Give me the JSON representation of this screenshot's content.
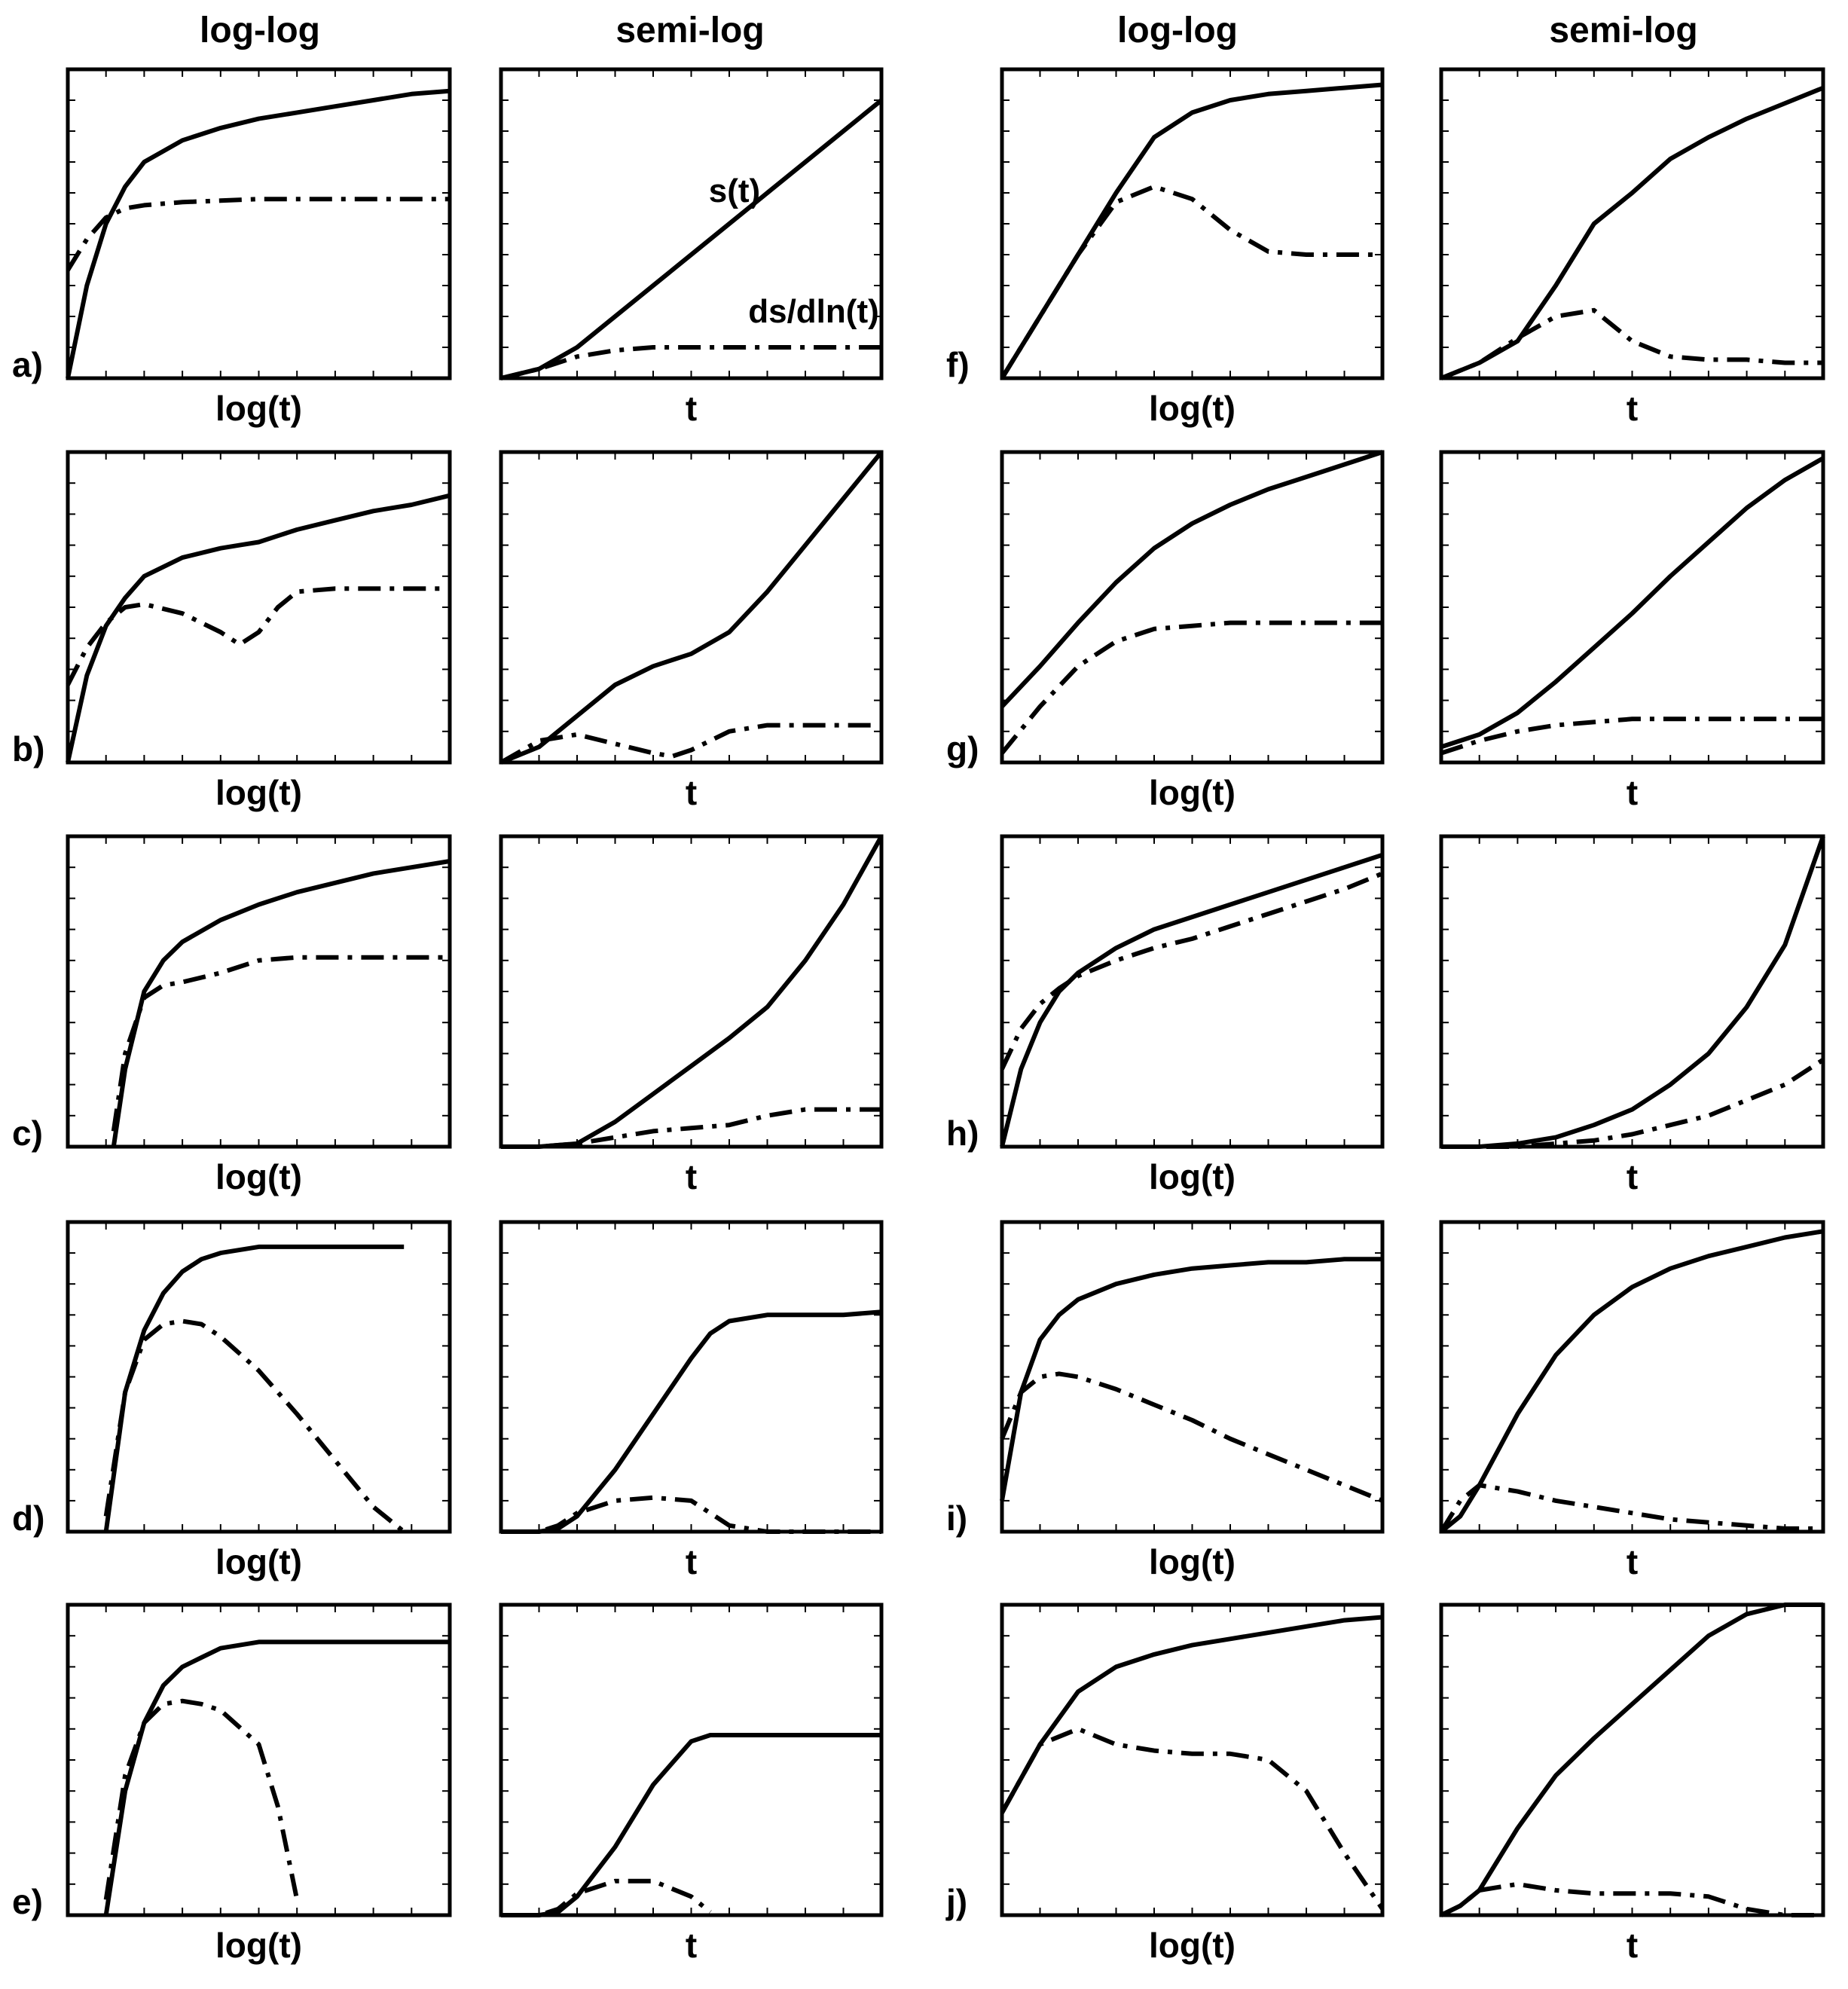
{
  "headers": {
    "loglog_left": "log-log",
    "semilog_left": "semi-log",
    "loglog_right": "log-log",
    "semilog_right": "semi-log"
  },
  "annotations": {
    "solid_curve": "s(t)",
    "dashdot_curve": "ds/dln(t)"
  },
  "style": {
    "line_color": "#000000",
    "frame_color": "#000000",
    "background": "#ffffff"
  },
  "chart_data": [
    {
      "id": "a",
      "label": "a)",
      "scale": "log-log",
      "type": "line",
      "xlabel": "log(t)",
      "x": [
        0,
        0.05,
        0.1,
        0.15,
        0.2,
        0.3,
        0.4,
        0.5,
        0.6,
        0.7,
        0.8,
        0.9,
        1
      ],
      "series": [
        {
          "name": "s(t)",
          "style": "solid",
          "values": [
            0,
            0.3,
            0.5,
            0.62,
            0.7,
            0.77,
            0.81,
            0.84,
            0.86,
            0.88,
            0.9,
            0.92,
            0.93
          ]
        },
        {
          "name": "ds/dln(t)",
          "style": "dashdot",
          "values": [
            0.35,
            0.45,
            0.52,
            0.55,
            0.56,
            0.57,
            0.575,
            0.58,
            0.58,
            0.58,
            0.58,
            0.58,
            0.58
          ]
        }
      ]
    },
    {
      "id": "a2",
      "label": "",
      "scale": "semi-log",
      "type": "line",
      "xlabel": "t",
      "x": [
        0,
        0.1,
        0.2,
        0.3,
        0.4,
        0.5,
        0.6,
        0.7,
        0.8,
        0.9,
        1
      ],
      "series": [
        {
          "name": "s(t)",
          "style": "solid",
          "values": [
            0,
            0.03,
            0.1,
            0.2,
            0.3,
            0.4,
            0.5,
            0.6,
            0.7,
            0.8,
            0.9
          ]
        },
        {
          "name": "ds/dln(t)",
          "style": "dashdot",
          "values": [
            0,
            0.03,
            0.07,
            0.09,
            0.1,
            0.1,
            0.1,
            0.1,
            0.1,
            0.1,
            0.1
          ]
        }
      ]
    },
    {
      "id": "b",
      "label": "b)",
      "scale": "log-log",
      "type": "line",
      "xlabel": "log(t)",
      "x": [
        0,
        0.05,
        0.1,
        0.15,
        0.2,
        0.3,
        0.4,
        0.45,
        0.5,
        0.55,
        0.6,
        0.7,
        0.8,
        0.9,
        1
      ],
      "series": [
        {
          "name": "s(t)",
          "style": "solid",
          "values": [
            0,
            0.28,
            0.44,
            0.53,
            0.6,
            0.66,
            0.69,
            0.7,
            0.71,
            0.73,
            0.75,
            0.78,
            0.81,
            0.83,
            0.86
          ]
        },
        {
          "name": "ds/dln(t)",
          "style": "dashdot",
          "values": [
            0.25,
            0.37,
            0.45,
            0.5,
            0.51,
            0.48,
            0.42,
            0.38,
            0.42,
            0.5,
            0.55,
            0.56,
            0.56,
            0.56,
            0.56
          ]
        }
      ]
    },
    {
      "id": "b2",
      "label": "",
      "scale": "semi-log",
      "type": "line",
      "xlabel": "t",
      "x": [
        0,
        0.1,
        0.2,
        0.3,
        0.4,
        0.45,
        0.5,
        0.6,
        0.7,
        0.8,
        0.9,
        1
      ],
      "series": [
        {
          "name": "s(t)",
          "style": "solid",
          "values": [
            0,
            0.05,
            0.15,
            0.25,
            0.31,
            0.33,
            0.35,
            0.42,
            0.55,
            0.7,
            0.85,
            1
          ]
        },
        {
          "name": "ds/dln(t)",
          "style": "dashdot",
          "values": [
            0,
            0.07,
            0.09,
            0.06,
            0.03,
            0.02,
            0.04,
            0.1,
            0.12,
            0.12,
            0.12,
            0.12
          ]
        }
      ]
    },
    {
      "id": "c",
      "label": "c)",
      "scale": "log-log",
      "type": "line",
      "xlabel": "log(t)",
      "x": [
        0.12,
        0.15,
        0.2,
        0.25,
        0.3,
        0.4,
        0.5,
        0.6,
        0.7,
        0.8,
        0.9,
        1
      ],
      "series": [
        {
          "name": "s(t)",
          "style": "solid",
          "values": [
            0,
            0.25,
            0.5,
            0.6,
            0.66,
            0.73,
            0.78,
            0.82,
            0.85,
            0.88,
            0.9,
            0.92
          ]
        },
        {
          "name": "ds/dln(t)",
          "style": "dashdot",
          "values": [
            0.05,
            0.3,
            0.48,
            0.52,
            0.53,
            0.56,
            0.6,
            0.61,
            0.61,
            0.61,
            0.61,
            0.61
          ]
        }
      ]
    },
    {
      "id": "c2",
      "label": "",
      "scale": "semi-log",
      "type": "line",
      "xlabel": "t",
      "x": [
        0,
        0.1,
        0.2,
        0.3,
        0.4,
        0.5,
        0.6,
        0.7,
        0.8,
        0.9,
        1
      ],
      "series": [
        {
          "name": "s(t)",
          "style": "solid",
          "values": [
            0,
            0,
            0.01,
            0.08,
            0.17,
            0.26,
            0.35,
            0.45,
            0.6,
            0.78,
            1
          ]
        },
        {
          "name": "ds/dln(t)",
          "style": "dashdot",
          "values": [
            0,
            0,
            0.01,
            0.03,
            0.05,
            0.06,
            0.07,
            0.1,
            0.12,
            0.12,
            0.12
          ]
        }
      ]
    },
    {
      "id": "d",
      "label": "d)",
      "scale": "log-log",
      "type": "line",
      "xlabel": "log(t)",
      "x": [
        0.1,
        0.15,
        0.2,
        0.25,
        0.3,
        0.35,
        0.4,
        0.5,
        0.6,
        0.7,
        0.8,
        0.88
      ],
      "series": [
        {
          "name": "s(t)",
          "style": "solid",
          "values": [
            0,
            0.45,
            0.65,
            0.77,
            0.84,
            0.88,
            0.9,
            0.92,
            0.92,
            0.92,
            0.92,
            0.92
          ]
        },
        {
          "name": "ds/dln(t)",
          "style": "dashdot",
          "values": [
            0.05,
            0.45,
            0.62,
            0.67,
            0.68,
            0.67,
            0.63,
            0.52,
            0.38,
            0.23,
            0.08,
            0
          ]
        }
      ]
    },
    {
      "id": "d2",
      "label": "",
      "scale": "semi-log",
      "type": "line",
      "xlabel": "t",
      "x": [
        0,
        0.1,
        0.15,
        0.2,
        0.3,
        0.4,
        0.5,
        0.55,
        0.6,
        0.7,
        0.8,
        0.9,
        1
      ],
      "series": [
        {
          "name": "s(t)",
          "style": "solid",
          "values": [
            0,
            0,
            0.01,
            0.05,
            0.2,
            0.38,
            0.56,
            0.64,
            0.68,
            0.7,
            0.7,
            0.7,
            0.71
          ]
        },
        {
          "name": "ds/dln(t)",
          "style": "dashdot",
          "values": [
            0,
            0,
            0.02,
            0.06,
            0.1,
            0.11,
            0.1,
            0.06,
            0.02,
            0,
            0,
            0,
            0
          ]
        }
      ]
    },
    {
      "id": "e",
      "label": "e)",
      "scale": "log-log",
      "type": "line",
      "xlabel": "log(t)",
      "x": [
        0.1,
        0.15,
        0.2,
        0.25,
        0.3,
        0.35,
        0.4,
        0.5,
        0.55,
        0.6,
        0.7,
        0.8,
        0.9,
        1
      ],
      "series": [
        {
          "name": "s(t)",
          "style": "solid",
          "values": [
            0,
            0.4,
            0.62,
            0.74,
            0.8,
            0.83,
            0.86,
            0.88,
            0.88,
            0.88,
            0.88,
            0.88,
            0.88,
            0.88
          ]
        },
        {
          "name": "ds/dln(t)",
          "style": "dashdot",
          "values": [
            0.05,
            0.45,
            0.62,
            0.68,
            0.69,
            0.68,
            0.66,
            0.55,
            0.35,
            0.05,
            null,
            null,
            null,
            null
          ]
        }
      ]
    },
    {
      "id": "e2",
      "label": "",
      "scale": "semi-log",
      "type": "line",
      "xlabel": "t",
      "x": [
        0,
        0.1,
        0.15,
        0.2,
        0.3,
        0.4,
        0.5,
        0.55,
        0.6,
        0.7,
        0.8,
        0.9,
        1
      ],
      "series": [
        {
          "name": "s(t)",
          "style": "solid",
          "values": [
            0,
            0,
            0.01,
            0.06,
            0.22,
            0.42,
            0.56,
            0.58,
            0.58,
            0.58,
            0.58,
            0.58,
            0.58
          ]
        },
        {
          "name": "ds/dln(t)",
          "style": "dashdot",
          "values": [
            0,
            0,
            0.02,
            0.07,
            0.11,
            0.11,
            0.06,
            0.01,
            null,
            null,
            null,
            null,
            null
          ]
        }
      ]
    },
    {
      "id": "f",
      "label": "f)",
      "scale": "log-log",
      "type": "line",
      "xlabel": "log(t)",
      "x": [
        0,
        0.1,
        0.2,
        0.3,
        0.4,
        0.5,
        0.6,
        0.7,
        0.8,
        0.9,
        1
      ],
      "series": [
        {
          "name": "s(t)",
          "style": "solid",
          "values": [
            0,
            0.2,
            0.4,
            0.6,
            0.78,
            0.86,
            0.9,
            0.92,
            0.93,
            0.94,
            0.95
          ]
        },
        {
          "name": "ds/dln(t)",
          "style": "dashdot",
          "values": [
            0,
            0.2,
            0.4,
            0.57,
            0.62,
            0.58,
            0.48,
            0.41,
            0.4,
            0.4,
            0.4
          ]
        }
      ]
    },
    {
      "id": "f2",
      "label": "",
      "scale": "semi-log",
      "type": "line",
      "xlabel": "t",
      "x": [
        0,
        0.1,
        0.2,
        0.3,
        0.4,
        0.5,
        0.6,
        0.7,
        0.8,
        0.9,
        1
      ],
      "series": [
        {
          "name": "s(t)",
          "style": "solid",
          "values": [
            0,
            0.05,
            0.12,
            0.3,
            0.5,
            0.6,
            0.71,
            0.78,
            0.84,
            0.89,
            0.94
          ]
        },
        {
          "name": "ds/dln(t)",
          "style": "dashdot",
          "values": [
            0,
            0.05,
            0.13,
            0.2,
            0.22,
            0.12,
            0.07,
            0.06,
            0.06,
            0.05,
            0.05
          ]
        }
      ]
    },
    {
      "id": "g",
      "label": "g)",
      "scale": "log-log",
      "type": "line",
      "xlabel": "log(t)",
      "x": [
        0,
        0.1,
        0.2,
        0.3,
        0.4,
        0.5,
        0.6,
        0.7,
        0.8,
        0.9,
        1
      ],
      "series": [
        {
          "name": "s(t)",
          "style": "solid",
          "values": [
            0.18,
            0.31,
            0.45,
            0.58,
            0.69,
            0.77,
            0.83,
            0.88,
            0.92,
            0.96,
            1
          ]
        },
        {
          "name": "ds/dln(t)",
          "style": "dashdot",
          "values": [
            0.03,
            0.18,
            0.31,
            0.39,
            0.43,
            0.44,
            0.45,
            0.45,
            0.45,
            0.45,
            0.45
          ]
        }
      ]
    },
    {
      "id": "g2",
      "label": "",
      "scale": "semi-log",
      "type": "line",
      "xlabel": "t",
      "x": [
        0,
        0.1,
        0.2,
        0.3,
        0.4,
        0.5,
        0.6,
        0.7,
        0.8,
        0.9,
        1
      ],
      "series": [
        {
          "name": "s(t)",
          "style": "solid",
          "values": [
            0.05,
            0.09,
            0.16,
            0.26,
            0.37,
            0.48,
            0.6,
            0.71,
            0.82,
            0.91,
            0.98
          ]
        },
        {
          "name": "ds/dln(t)",
          "style": "dashdot",
          "values": [
            0.03,
            0.07,
            0.1,
            0.12,
            0.13,
            0.14,
            0.14,
            0.14,
            0.14,
            0.14,
            0.14
          ]
        }
      ]
    },
    {
      "id": "h",
      "label": "h)",
      "scale": "log-log",
      "type": "line",
      "xlabel": "log(t)",
      "x": [
        0,
        0.05,
        0.1,
        0.15,
        0.2,
        0.3,
        0.4,
        0.5,
        0.6,
        0.7,
        0.8,
        0.9,
        1
      ],
      "series": [
        {
          "name": "s(t)",
          "style": "solid",
          "values": [
            0,
            0.25,
            0.4,
            0.5,
            0.56,
            0.64,
            0.7,
            0.74,
            0.78,
            0.82,
            0.86,
            0.9,
            0.94
          ]
        },
        {
          "name": "ds/dln(t)",
          "style": "dashdot",
          "values": [
            0.25,
            0.38,
            0.46,
            0.51,
            0.55,
            0.6,
            0.64,
            0.67,
            0.71,
            0.75,
            0.79,
            0.83,
            0.88
          ]
        }
      ]
    },
    {
      "id": "h2",
      "label": "",
      "scale": "semi-log",
      "type": "line",
      "xlabel": "t",
      "x": [
        0,
        0.1,
        0.2,
        0.3,
        0.4,
        0.5,
        0.6,
        0.7,
        0.8,
        0.9,
        1
      ],
      "series": [
        {
          "name": "s(t)",
          "style": "solid",
          "values": [
            0,
            0,
            0.01,
            0.03,
            0.07,
            0.12,
            0.2,
            0.3,
            0.45,
            0.65,
            1
          ]
        },
        {
          "name": "ds/dln(t)",
          "style": "dashdot",
          "values": [
            0,
            0,
            0,
            0.01,
            0.02,
            0.04,
            0.07,
            0.1,
            0.15,
            0.2,
            0.28
          ]
        }
      ]
    },
    {
      "id": "i",
      "label": "i)",
      "scale": "log-log",
      "type": "line",
      "xlabel": "log(t)",
      "x": [
        0,
        0.05,
        0.1,
        0.15,
        0.2,
        0.3,
        0.4,
        0.5,
        0.6,
        0.7,
        0.8,
        0.9,
        1
      ],
      "series": [
        {
          "name": "s(t)",
          "style": "solid",
          "values": [
            0.1,
            0.45,
            0.62,
            0.7,
            0.75,
            0.8,
            0.83,
            0.85,
            0.86,
            0.87,
            0.87,
            0.88,
            0.88
          ]
        },
        {
          "name": "ds/dln(t)",
          "style": "dashdot",
          "values": [
            0.3,
            0.45,
            0.5,
            0.51,
            0.5,
            0.46,
            0.41,
            0.36,
            0.3,
            0.25,
            0.2,
            0.15,
            0.1
          ]
        }
      ]
    },
    {
      "id": "i2",
      "label": "",
      "scale": "semi-log",
      "type": "line",
      "xlabel": "t",
      "x": [
        0,
        0.05,
        0.1,
        0.2,
        0.3,
        0.4,
        0.5,
        0.6,
        0.7,
        0.8,
        0.9,
        1
      ],
      "series": [
        {
          "name": "s(t)",
          "style": "solid",
          "values": [
            0,
            0.05,
            0.15,
            0.38,
            0.57,
            0.7,
            0.79,
            0.85,
            0.89,
            0.92,
            0.95,
            0.97
          ]
        },
        {
          "name": "ds/dln(t)",
          "style": "dashdot",
          "values": [
            0,
            0.1,
            0.15,
            0.13,
            0.1,
            0.08,
            0.06,
            0.04,
            0.03,
            0.02,
            0.01,
            0.01
          ]
        }
      ]
    },
    {
      "id": "j",
      "label": "j)",
      "scale": "log-log",
      "type": "line",
      "xlabel": "log(t)",
      "x": [
        0,
        0.1,
        0.2,
        0.3,
        0.4,
        0.5,
        0.6,
        0.7,
        0.8,
        0.9,
        1
      ],
      "series": [
        {
          "name": "s(t)",
          "style": "solid",
          "values": [
            0.33,
            0.55,
            0.72,
            0.8,
            0.84,
            0.87,
            0.89,
            0.91,
            0.93,
            0.95,
            0.96
          ]
        },
        {
          "name": "ds/dln(t)",
          "style": "dashdot",
          "values": [
            0.33,
            0.55,
            0.6,
            0.55,
            0.53,
            0.52,
            0.52,
            0.5,
            0.4,
            0.2,
            0.02
          ]
        }
      ]
    },
    {
      "id": "j2",
      "label": "",
      "scale": "semi-log",
      "type": "line",
      "xlabel": "t",
      "x": [
        0,
        0.05,
        0.1,
        0.2,
        0.3,
        0.4,
        0.5,
        0.6,
        0.7,
        0.8,
        0.9,
        1
      ],
      "series": [
        {
          "name": "s(t)",
          "style": "solid",
          "values": [
            0,
            0.03,
            0.08,
            0.28,
            0.45,
            0.57,
            0.68,
            0.79,
            0.9,
            0.97,
            1,
            1
          ]
        },
        {
          "name": "ds/dln(t)",
          "style": "dashdot",
          "values": [
            0,
            0.03,
            0.08,
            0.1,
            0.08,
            0.07,
            0.07,
            0.07,
            0.06,
            0.02,
            0,
            0
          ]
        }
      ]
    }
  ]
}
